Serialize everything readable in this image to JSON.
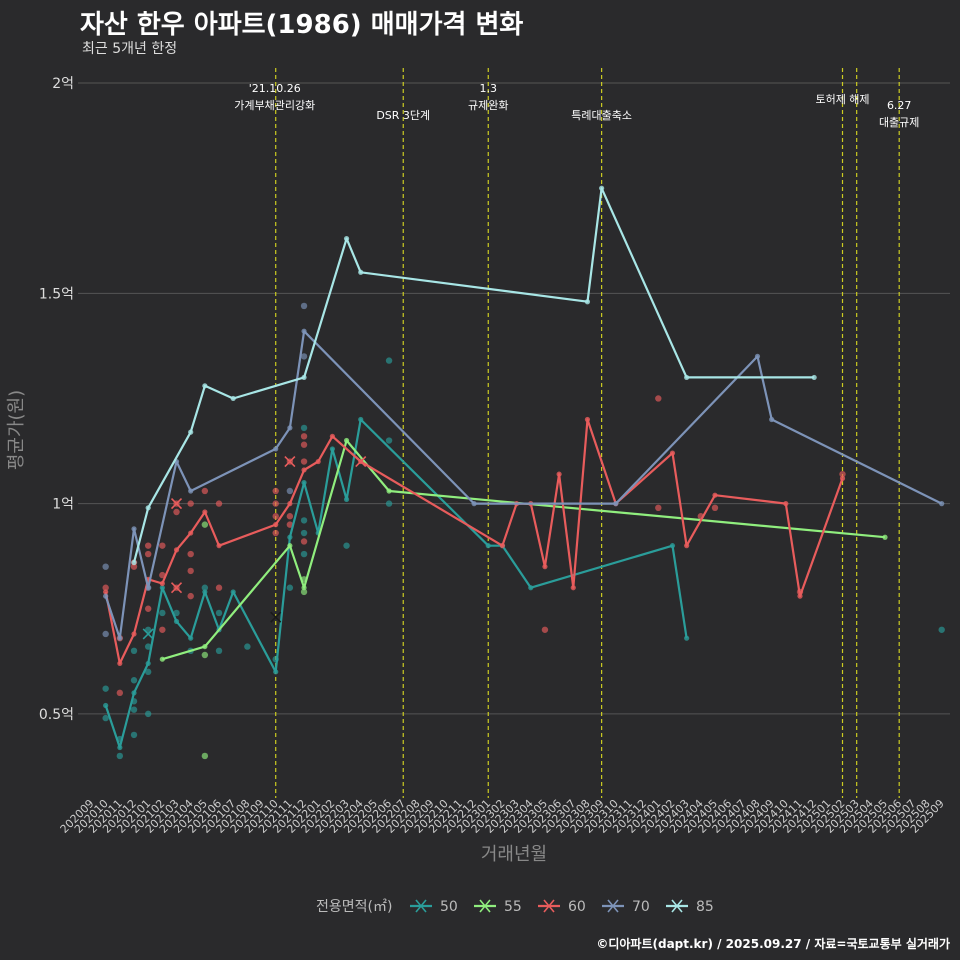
{
  "title": "자산 한우 아파트(1986) 매매가격 변화",
  "subtitle": "최근 5개년 한정",
  "caption": "©디아파트(dapt.kr) / 2025.09.27 / 자료=국토교통부 실거래가",
  "chart_data": {
    "type": "line",
    "xlabel": "거래년월",
    "ylabel": "평균가(원)",
    "ylim": [
      0.3,
      2.05
    ],
    "yticks": [
      {
        "v": 0.5,
        "label": "0.5억"
      },
      {
        "v": 1.0,
        "label": "1억"
      },
      {
        "v": 1.5,
        "label": "1.5억"
      },
      {
        "v": 2.0,
        "label": "2억"
      }
    ],
    "months": [
      "202009",
      "202010",
      "202011",
      "202012",
      "202101",
      "202102",
      "202103",
      "202104",
      "202105",
      "202106",
      "202107",
      "202108",
      "202109",
      "202110",
      "202111",
      "202112",
      "202201",
      "202202",
      "202203",
      "202204",
      "202205",
      "202206",
      "202207",
      "202208",
      "202209",
      "202210",
      "202211",
      "202212",
      "202301",
      "202302",
      "202303",
      "202304",
      "202305",
      "202306",
      "202307",
      "202308",
      "202309",
      "202310",
      "202311",
      "202312",
      "202401",
      "202402",
      "202403",
      "202404",
      "202405",
      "202406",
      "202407",
      "202408",
      "202409",
      "202410",
      "202411",
      "202412",
      "202501",
      "202502",
      "202503",
      "202504",
      "202505",
      "202506",
      "202507",
      "202508",
      "202509"
    ],
    "legend_title": "전용면적(㎡)",
    "series": [
      {
        "name": "50",
        "color": "#2a9d9a",
        "line": [
          [
            "202010",
            0.52
          ],
          [
            "202011",
            0.42
          ],
          [
            "202012",
            0.55
          ],
          [
            "202101",
            0.62
          ],
          [
            "202102",
            0.8
          ],
          [
            "202103",
            0.72
          ],
          [
            "202104",
            0.68
          ],
          [
            "202105",
            0.79
          ],
          [
            "202106",
            0.7
          ],
          [
            "202107",
            0.79
          ],
          [
            "202110",
            0.6
          ],
          [
            "202111",
            0.92
          ],
          [
            "202112",
            1.05
          ],
          [
            "202201",
            0.93
          ],
          [
            "202202",
            1.13
          ],
          [
            "202203",
            1.01
          ],
          [
            "202204",
            1.2
          ],
          [
            "202301",
            0.9
          ],
          [
            "202302",
            0.9
          ],
          [
            "202304",
            0.8
          ],
          [
            "202402",
            0.9
          ],
          [
            "202403",
            0.68
          ]
        ],
        "points": [
          [
            "202010",
            0.56
          ],
          [
            "202010",
            0.49
          ],
          [
            "202011",
            0.4
          ],
          [
            "202011",
            0.44
          ],
          [
            "202012",
            0.65
          ],
          [
            "202012",
            0.58
          ],
          [
            "202012",
            0.53
          ],
          [
            "202012",
            0.51
          ],
          [
            "202012",
            0.45
          ],
          [
            "202101",
            0.7
          ],
          [
            "202101",
            0.66
          ],
          [
            "202101",
            0.6
          ],
          [
            "202101",
            0.5
          ],
          [
            "202102",
            0.74
          ],
          [
            "202103",
            0.74
          ],
          [
            "202104",
            0.65
          ],
          [
            "202105",
            0.8
          ],
          [
            "202106",
            0.74
          ],
          [
            "202106",
            0.65
          ],
          [
            "202108",
            0.66
          ],
          [
            "202110",
            0.63
          ],
          [
            "202111",
            0.8
          ],
          [
            "202112",
            0.96
          ],
          [
            "202112",
            0.93
          ],
          [
            "202112",
            0.88
          ],
          [
            "202112",
            1.18
          ],
          [
            "202203",
            0.9
          ],
          [
            "202206",
            1.34
          ],
          [
            "202206",
            1.15
          ],
          [
            "202206",
            1.0
          ],
          [
            "202509",
            0.7
          ]
        ]
      },
      {
        "name": "55",
        "color": "#90ee7e",
        "line": [
          [
            "202102",
            0.63
          ],
          [
            "202105",
            0.66
          ],
          [
            "202111",
            0.9
          ],
          [
            "202112",
            0.8
          ],
          [
            "202203",
            1.15
          ],
          [
            "202206",
            1.03
          ],
          [
            "202505",
            0.92
          ]
        ],
        "points": [
          [
            "202105",
            0.64
          ],
          [
            "202105",
            0.4
          ],
          [
            "202105",
            0.95
          ],
          [
            "202112",
            0.82
          ],
          [
            "202112",
            0.79
          ]
        ]
      },
      {
        "name": "60",
        "color": "#e85c5c",
        "line": [
          [
            "202010",
            0.79
          ],
          [
            "202011",
            0.62
          ],
          [
            "202012",
            0.69
          ],
          [
            "202101",
            0.82
          ],
          [
            "202102",
            0.81
          ],
          [
            "202103",
            0.89
          ],
          [
            "202104",
            0.93
          ],
          [
            "202105",
            0.98
          ],
          [
            "202106",
            0.9
          ],
          [
            "202110",
            0.95
          ],
          [
            "202111",
            1.0
          ],
          [
            "202112",
            1.08
          ],
          [
            "202201",
            1.1
          ],
          [
            "202202",
            1.16
          ],
          [
            "202204",
            1.1
          ],
          [
            "202302",
            0.9
          ],
          [
            "202303",
            1.0
          ],
          [
            "202304",
            1.0
          ],
          [
            "202305",
            0.85
          ],
          [
            "202306",
            1.07
          ],
          [
            "202307",
            0.8
          ],
          [
            "202308",
            1.2
          ],
          [
            "202310",
            1.0
          ],
          [
            "202402",
            1.12
          ],
          [
            "202403",
            0.9
          ],
          [
            "202405",
            1.02
          ],
          [
            "202410",
            1.0
          ],
          [
            "202411",
            0.78
          ],
          [
            "202502",
            1.06
          ]
        ],
        "points": [
          [
            "202010",
            0.8
          ],
          [
            "202011",
            0.68
          ],
          [
            "202011",
            0.55
          ],
          [
            "202012",
            0.86
          ],
          [
            "202012",
            0.85
          ],
          [
            "202101",
            0.9
          ],
          [
            "202101",
            0.88
          ],
          [
            "202101",
            0.75
          ],
          [
            "202102",
            0.9
          ],
          [
            "202102",
            0.83
          ],
          [
            "202102",
            0.7
          ],
          [
            "202103",
            1.0
          ],
          [
            "202103",
            0.98
          ],
          [
            "202103",
            0.8
          ],
          [
            "202104",
            1.0
          ],
          [
            "202104",
            0.88
          ],
          [
            "202104",
            0.84
          ],
          [
            "202104",
            0.78
          ],
          [
            "202105",
            1.03
          ],
          [
            "202106",
            1.0
          ],
          [
            "202106",
            0.8
          ],
          [
            "202110",
            1.03
          ],
          [
            "202110",
            1.0
          ],
          [
            "202110",
            0.97
          ],
          [
            "202110",
            0.93
          ],
          [
            "202111",
            1.1
          ],
          [
            "202111",
            0.97
          ],
          [
            "202111",
            0.95
          ],
          [
            "202112",
            1.16
          ],
          [
            "202112",
            1.14
          ],
          [
            "202112",
            1.1
          ],
          [
            "202112",
            0.91
          ],
          [
            "202305",
            0.7
          ],
          [
            "202401",
            1.25
          ],
          [
            "202401",
            0.99
          ],
          [
            "202404",
            0.97
          ],
          [
            "202405",
            0.99
          ],
          [
            "202411",
            0.79
          ],
          [
            "202502",
            1.07
          ]
        ]
      },
      {
        "name": "70",
        "color": "#7d93b8",
        "line": [
          [
            "202010",
            0.78
          ],
          [
            "202011",
            0.68
          ],
          [
            "202012",
            0.94
          ],
          [
            "202101",
            0.8
          ],
          [
            "202103",
            1.1
          ],
          [
            "202104",
            1.03
          ],
          [
            "202110",
            1.13
          ],
          [
            "202111",
            1.18
          ],
          [
            "202112",
            1.41
          ],
          [
            "202212",
            1.0
          ],
          [
            "202310",
            1.0
          ],
          [
            "202408",
            1.35
          ],
          [
            "202409",
            1.2
          ],
          [
            "202509",
            1.0
          ]
        ],
        "points": [
          [
            "202010",
            0.85
          ],
          [
            "202010",
            0.69
          ],
          [
            "202101",
            0.8
          ],
          [
            "202111",
            1.03
          ],
          [
            "202112",
            1.47
          ],
          [
            "202112",
            1.35
          ]
        ]
      },
      {
        "name": "85",
        "color": "#a8e6e6",
        "line": [
          [
            "202012",
            0.86
          ],
          [
            "202101",
            0.99
          ],
          [
            "202104",
            1.17
          ],
          [
            "202105",
            1.28
          ],
          [
            "202107",
            1.25
          ],
          [
            "202112",
            1.3
          ],
          [
            "202203",
            1.63
          ],
          [
            "202204",
            1.55
          ],
          [
            "202308",
            1.48
          ],
          [
            "202309",
            1.75
          ],
          [
            "202403",
            1.3
          ],
          [
            "202412",
            1.3
          ]
        ],
        "points": []
      }
    ],
    "crosses": [
      {
        "month": "202103",
        "value": 1.0,
        "color": "#e85c5c"
      },
      {
        "month": "202103",
        "value": 0.8,
        "color": "#e85c5c"
      },
      {
        "month": "202111",
        "value": 1.1,
        "color": "#e85c5c"
      },
      {
        "month": "202204",
        "value": 1.1,
        "color": "#e85c5c"
      },
      {
        "month": "202101",
        "value": 0.69,
        "color": "#2a9d9a"
      },
      {
        "month": "202110",
        "value": 0.73,
        "color": "#1a1a1a"
      }
    ],
    "events": [
      {
        "month": "202110",
        "lines": [
          "'21.10.26",
          "가계부채관리강화"
        ]
      },
      {
        "month": "202207",
        "lines": [
          "DSR 3단계"
        ]
      },
      {
        "month": "202301",
        "lines": [
          "1.3",
          "규제완화"
        ]
      },
      {
        "month": "202309",
        "lines": [
          "특례대출축소"
        ]
      },
      {
        "month": "202502",
        "lines": [
          "토허제 해제"
        ]
      },
      {
        "month": "202503",
        "lines": []
      },
      {
        "month": "202506",
        "lines": [
          "6.27",
          "대출규제"
        ]
      }
    ]
  }
}
